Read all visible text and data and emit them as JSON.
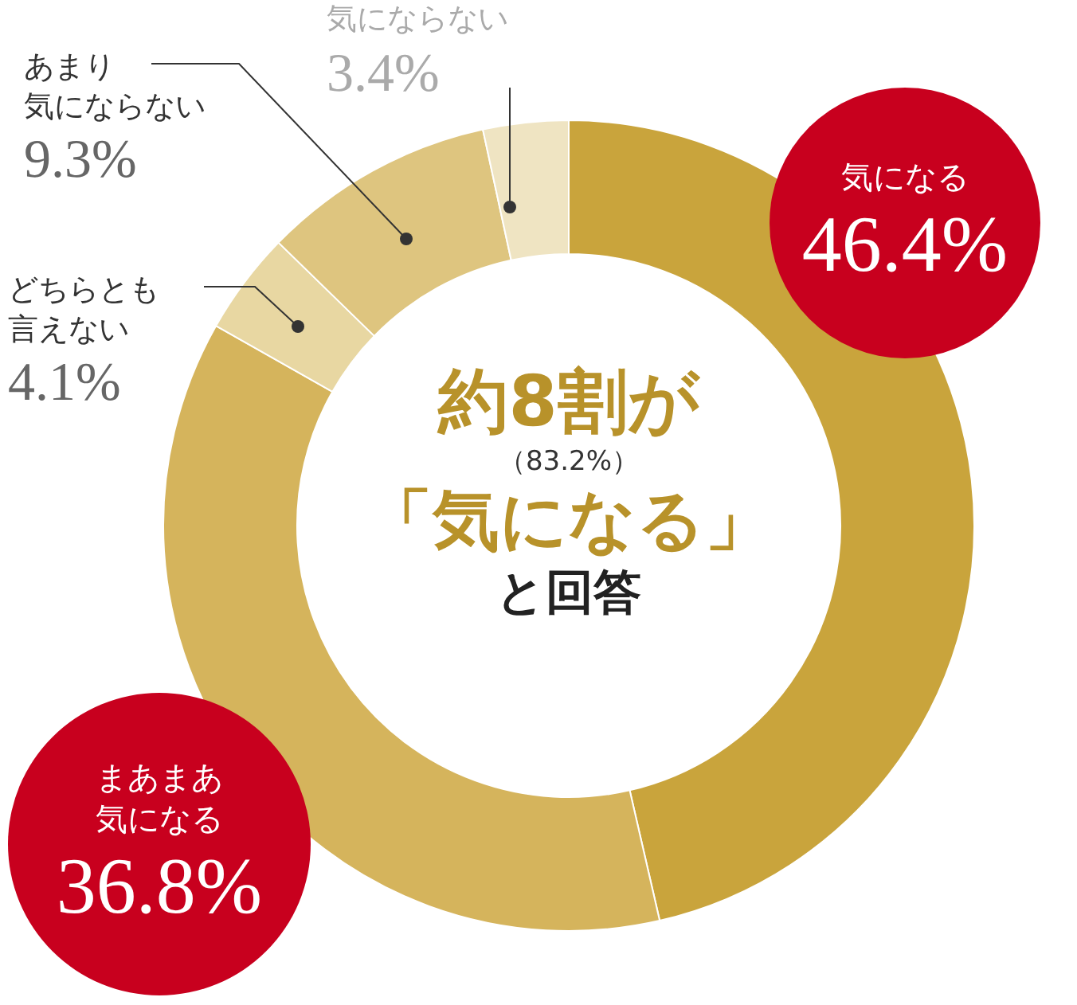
{
  "chart_data": {
    "type": "donut",
    "categories": [
      "気になる",
      "まあまあ気になる",
      "どちらとも言えない",
      "あまり気にならない",
      "気にならない"
    ],
    "values": [
      46.4,
      36.8,
      4.1,
      9.3,
      3.4
    ],
    "value_labels": [
      "46.4%",
      "36.8%",
      "4.1%",
      "9.3%",
      "3.4%"
    ],
    "colors": [
      "#c9a43c",
      "#d5b45c",
      "#e8d7a2",
      "#dec57f",
      "#efe4c2"
    ],
    "annotations": [
      "約8割が",
      "（83.2%）",
      "「気になる」",
      "と回答"
    ],
    "legend": false
  }
}
